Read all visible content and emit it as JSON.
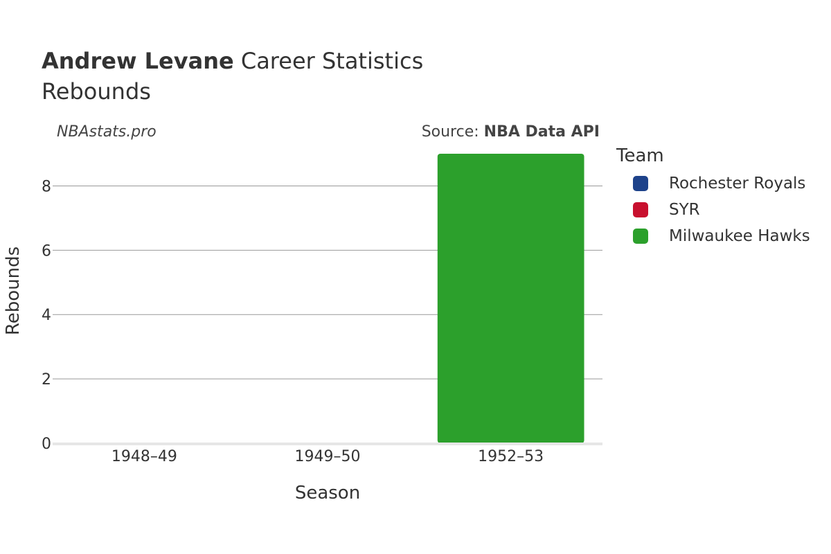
{
  "header": {
    "player_name": "Andrew Levane",
    "title_rest": " Career Statistics",
    "subtitle": "Rebounds"
  },
  "watermark": "NBAstats.pro",
  "source": {
    "prefix": "Source: ",
    "name": "NBA Data API"
  },
  "legend": {
    "title": "Team",
    "items": [
      {
        "label": "Rochester Royals",
        "color": "#1d428a"
      },
      {
        "label": "SYR",
        "color": "#c8102e"
      },
      {
        "label": "Milwaukee Hawks",
        "color": "#2ca02c"
      }
    ]
  },
  "chart_data": {
    "type": "bar",
    "title": "Andrew Levane Career Statistics",
    "subtitle": "Rebounds",
    "xlabel": "Season",
    "ylabel": "Rebounds",
    "categories": [
      "1948–49",
      "1949–50",
      "1952–53"
    ],
    "ylim": [
      0,
      9
    ],
    "yticks": [
      0,
      2,
      4,
      6,
      8
    ],
    "grid": true,
    "legend_position": "right",
    "series": [
      {
        "name": "Rochester Royals",
        "color": "#1d428a",
        "values": [
          0,
          0,
          0
        ]
      },
      {
        "name": "SYR",
        "color": "#c8102e",
        "values": [
          0,
          0,
          0
        ]
      },
      {
        "name": "Milwaukee Hawks",
        "color": "#2ca02c",
        "values": [
          0,
          0,
          9
        ]
      }
    ]
  }
}
